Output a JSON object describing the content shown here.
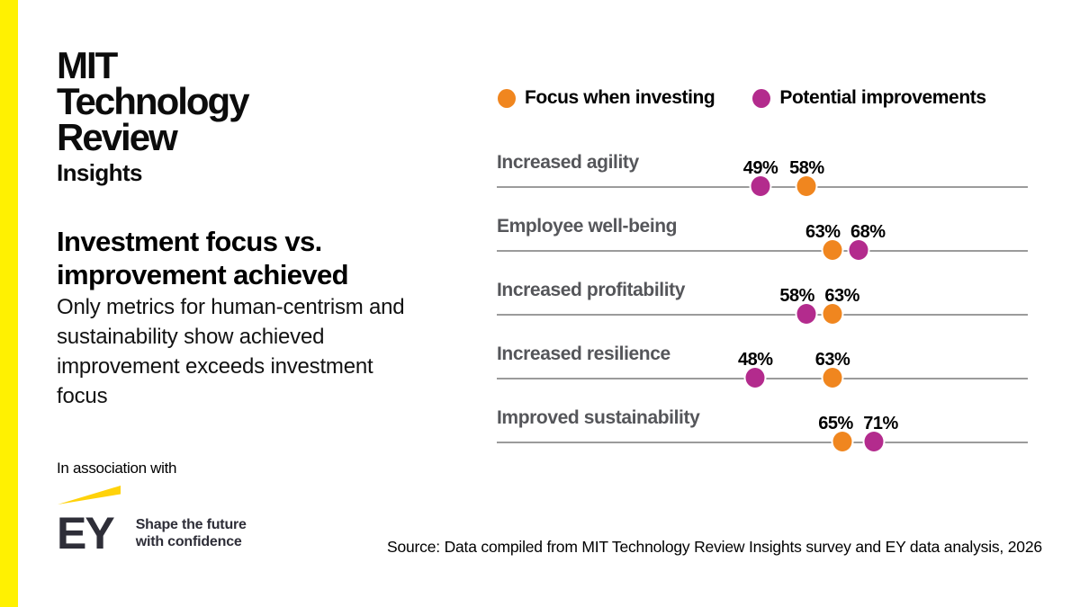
{
  "brand": {
    "logo_lines": [
      "MIT",
      "Technology",
      "Review"
    ],
    "insights_label": "Insights",
    "bar_color": "#FFF101"
  },
  "headline": {
    "title": "Investment focus vs. improvement achieved",
    "subtitle": "Only metrics for human-centrism and sustainability show achieved improvement exceeds investment focus"
  },
  "association": {
    "label": "In association with",
    "ey_name": "EY",
    "ey_tagline_line1": "Shape the future",
    "ey_tagline_line2": "with confidence",
    "ey_beam_color": "#FFD20A",
    "ey_navy": "#2E2E38"
  },
  "legend": {
    "items": [
      {
        "label": "Focus when investing",
        "color": "#F0861F"
      },
      {
        "label": "Potential improvements",
        "color": "#B32B8D"
      }
    ]
  },
  "chart_data": {
    "type": "dumbbell_dot_plot",
    "title": "Investment focus vs. improvement achieved",
    "categories": [
      "Increased agility",
      "Employee well-being",
      "Increased profitability",
      "Increased resilience",
      "Improved sustainability"
    ],
    "series": [
      {
        "name": "Focus when investing",
        "color": "#F0861F",
        "values": [
          58,
          63,
          63,
          63,
          65
        ]
      },
      {
        "name": "Potential improvements",
        "color": "#B32B8D",
        "values": [
          49,
          68,
          58,
          48,
          71
        ]
      }
    ],
    "value_suffix": "%",
    "xlim": [
      0,
      100
    ],
    "grid": "one horizontal baseline per category",
    "legend_position": "top"
  },
  "source": "Source: Data compiled from MIT Technology Review Insights survey and EY data analysis, 2026"
}
